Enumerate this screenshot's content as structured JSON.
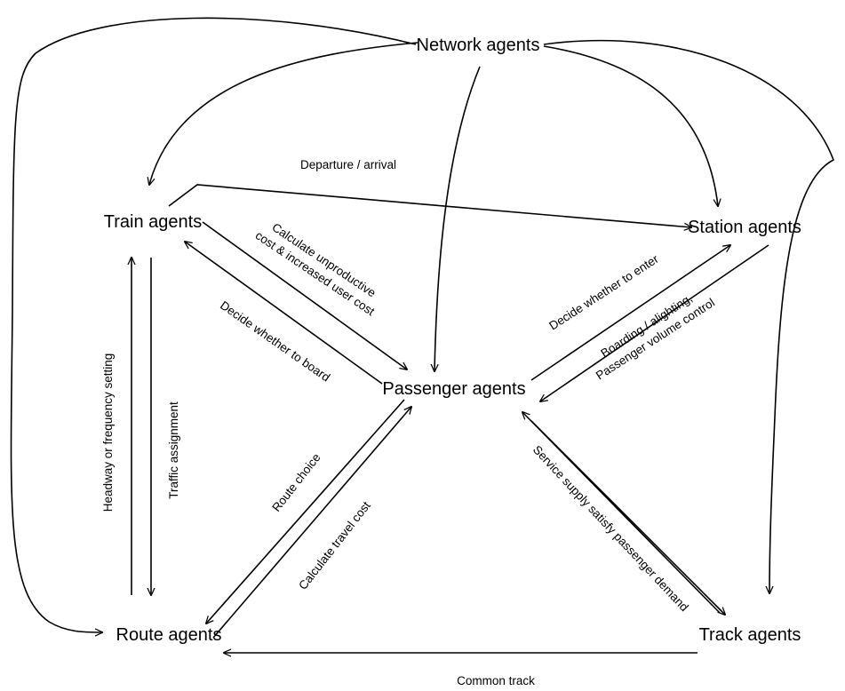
{
  "nodes": {
    "network": "Network  agents",
    "train": "Train agents",
    "station": "Station agents",
    "passenger": "Passenger agents",
    "route": "Route agents",
    "track": "Track agents"
  },
  "edges": {
    "departure_arrival": "Departure / arrival",
    "calc_unproductive_1": "Calculate unproductive",
    "calc_unproductive_2": "cost & increased user cost",
    "decide_board": "Decide whether to board",
    "decide_enter": "Decide whether to enter",
    "boarding_1": "Boarding / alighting,",
    "boarding_2": "Passenger volume control",
    "headway": "Headway or frequency setting",
    "traffic_assignment": "Traffic assignment",
    "route_choice": "Route choice",
    "calc_travel_cost": "Calculate travel cost",
    "service_supply": "Service supply satisfy passenger demand",
    "common_track": "Common  track"
  }
}
